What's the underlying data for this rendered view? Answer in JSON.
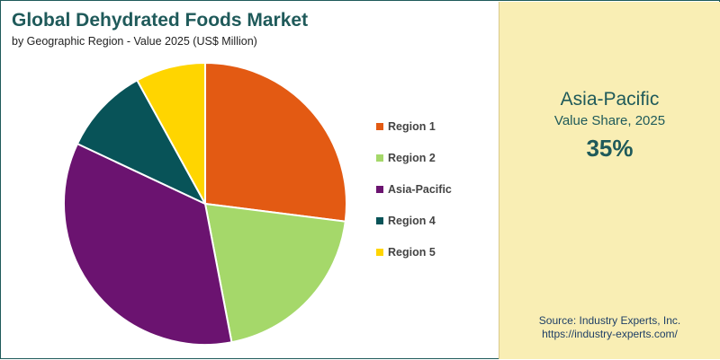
{
  "header": {
    "title": "Global Dehydrated Foods Market",
    "subtitle": "by Geographic Region - Value 2025 (US$ Million)"
  },
  "chart_data": {
    "type": "pie",
    "categories": [
      "Region 1",
      "Region 2",
      "Asia-Pacific",
      "Region 4",
      "Region 5"
    ],
    "values": [
      27,
      20,
      35,
      10,
      8
    ],
    "colors": [
      "#e35a13",
      "#a5d86a",
      "#6b1370",
      "#085358",
      "#ffd500"
    ],
    "start_angle_deg": 0,
    "direction": "clockwise",
    "legend_position": "right"
  },
  "highlight": {
    "region": "Asia-Pacific",
    "label": "Value Share, 2025",
    "value": "35%"
  },
  "source": {
    "line1": "Source: Industry Experts, Inc.",
    "line2": "https://industry-experts.com/"
  }
}
